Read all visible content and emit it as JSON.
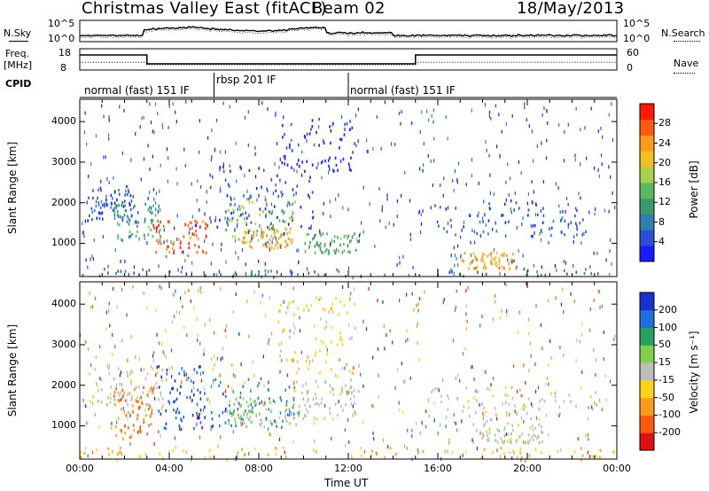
{
  "header": {
    "station": "Christmas Valley East (fitACF)",
    "beam": "Beam 02",
    "date": "18/May/2013"
  },
  "panels": {
    "nsky_label": "N.Sky",
    "nsearch_label": "N.Search",
    "freq_label_line1": "Freq.",
    "freq_label_line2": "[MHz]",
    "nave_label": "Nave",
    "cpid_label": "CPID",
    "nsky_ticks": [
      "10^5",
      "10^0"
    ],
    "nsearch_ticks": [
      "10^5",
      "10^0"
    ],
    "freq_ticks": [
      "18",
      "8"
    ],
    "nave_ticks": [
      "60",
      "0"
    ]
  },
  "cpid_segments": [
    {
      "label": "normal (fast) 151 IF",
      "start_hour": 0,
      "end_hour": 6
    },
    {
      "label": "rbsp 201 IF",
      "start_hour": 6,
      "end_hour": 12
    },
    {
      "label": "normal (fast) 151 IF",
      "start_hour": 12,
      "end_hour": 24
    }
  ],
  "freq_series": {
    "hours": [
      0,
      3,
      3,
      15,
      15,
      24
    ],
    "mhz": [
      15.5,
      15.5,
      10.5,
      10.5,
      15.5,
      15.5
    ]
  },
  "nave_series": {
    "hours": [
      0,
      3,
      3,
      15,
      15,
      24
    ],
    "value": [
      22,
      22,
      15,
      15,
      22,
      22
    ]
  },
  "chart_data": [
    {
      "type": "heatmap",
      "name": "power",
      "ylabel": "Slant Range [km]",
      "xlabel": "Time UT",
      "x_ticks": [
        "00:00",
        "04:00",
        "08:00",
        "12:00",
        "16:00",
        "20:00",
        "00:00"
      ],
      "y_ticks": [
        1000,
        2000,
        3000,
        4000
      ],
      "xlim_hours": [
        0,
        24
      ],
      "ylim_km": [
        180,
        4550
      ],
      "colorbar": {
        "label": "Power [dB]",
        "ticks": [
          4,
          8,
          12,
          16,
          20,
          24,
          28
        ],
        "colors": [
          "#1a1aff",
          "#2a4fd6",
          "#2f7fb0",
          "#3a9a6a",
          "#5cb85c",
          "#a8d14a",
          "#f0c020",
          "#ff9a1a",
          "#ff5a10",
          "#ff1a00"
        ]
      },
      "blobs": [
        {
          "t": [
            0.3,
            2.6
          ],
          "r": [
            1550,
            2450
          ],
          "p": 6
        },
        {
          "t": [
            1.5,
            3.6
          ],
          "r": [
            1100,
            2000
          ],
          "p": 12
        },
        {
          "t": [
            3.2,
            5.7
          ],
          "r": [
            700,
            1600
          ],
          "p": 26
        },
        {
          "t": [
            5.8,
            10.5
          ],
          "r": [
            1400,
            3000
          ],
          "p": 5
        },
        {
          "t": [
            6.5,
            9.6
          ],
          "r": [
            1050,
            2200
          ],
          "p": 16
        },
        {
          "t": [
            7.2,
            9.6
          ],
          "r": [
            900,
            1400
          ],
          "p": 22
        },
        {
          "t": [
            9.0,
            12.3
          ],
          "r": [
            2800,
            4100
          ],
          "p": 4
        },
        {
          "t": [
            10.0,
            12.5
          ],
          "r": [
            750,
            1300
          ],
          "p": 14
        },
        {
          "t": [
            15.8,
            22.6
          ],
          "r": [
            1200,
            2100
          ],
          "p": 6
        },
        {
          "t": [
            17.0,
            19.6
          ],
          "r": [
            400,
            800
          ],
          "p": 22
        },
        {
          "t": [
            0,
            24
          ],
          "r": [
            200,
            400
          ],
          "p": 9
        }
      ]
    },
    {
      "type": "heatmap",
      "name": "velocity",
      "ylabel": "Slant Range [km]",
      "xlabel": "Time UT",
      "x_ticks": [
        "00:00",
        "04:00",
        "08:00",
        "12:00",
        "16:00",
        "20:00",
        "00:00"
      ],
      "y_ticks": [
        1000,
        2000,
        3000,
        4000
      ],
      "xlim_hours": [
        0,
        24
      ],
      "ylim_km": [
        180,
        4550
      ],
      "colorbar": {
        "label": "Velocity [m s⁻¹]",
        "ticks": [
          200,
          100,
          50,
          15,
          -15,
          -50,
          -100,
          -200
        ],
        "colors": [
          "#1a2fd0",
          "#1e6fe0",
          "#2aa060",
          "#7fd04a",
          "#bdbdbd",
          "#ffd21a",
          "#ff9a1a",
          "#ff5a10",
          "#e01010"
        ]
      },
      "blobs": [
        {
          "t": [
            0.2,
            3.8
          ],
          "r": [
            1500,
            2500
          ],
          "v": 0
        },
        {
          "t": [
            1.5,
            3.5
          ],
          "r": [
            700,
            2000
          ],
          "v": -150
        },
        {
          "t": [
            3.4,
            5.6
          ],
          "r": [
            900,
            2500
          ],
          "v": 200
        },
        {
          "t": [
            5.8,
            9.6
          ],
          "r": [
            1000,
            2200
          ],
          "v": 150
        },
        {
          "t": [
            6.5,
            9.6
          ],
          "r": [
            1000,
            1700
          ],
          "v": 40
        },
        {
          "t": [
            8.8,
            12.4
          ],
          "r": [
            2300,
            4200
          ],
          "v": -40
        },
        {
          "t": [
            9.5,
            12.5
          ],
          "r": [
            1200,
            2200
          ],
          "v": 0
        },
        {
          "t": [
            15.5,
            23.2
          ],
          "r": [
            1100,
            2000
          ],
          "v": 0
        },
        {
          "t": [
            17.5,
            21.0
          ],
          "r": [
            600,
            1100
          ],
          "v": 0
        },
        {
          "t": [
            0,
            24
          ],
          "r": [
            200,
            500
          ],
          "v": -80
        }
      ]
    }
  ]
}
